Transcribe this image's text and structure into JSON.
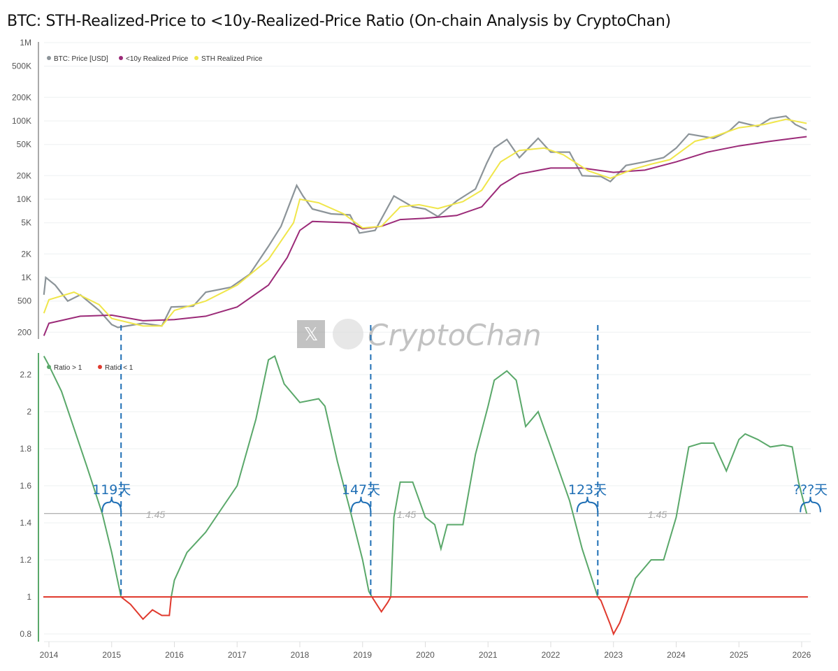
{
  "title": "BTC: STH-Realized-Price to <10y-Realized-Price Ratio (On-chain Analysis by CryptoChan)",
  "watermark": {
    "text": "CryptoChan",
    "icon": "x-logo-icon"
  },
  "chart_data": [
    {
      "type": "line",
      "yscale": "log",
      "ylim": [
        100,
        1000000
      ],
      "yticks": [
        {
          "v": 1000000,
          "label": "1M"
        },
        {
          "v": 500000,
          "label": "500K"
        },
        {
          "v": 200000,
          "label": "200K"
        },
        {
          "v": 100000,
          "label": "100K"
        },
        {
          "v": 50000,
          "label": "50K"
        },
        {
          "v": 20000,
          "label": "20K"
        },
        {
          "v": 10000,
          "label": "10K"
        },
        {
          "v": 5000,
          "label": "5K"
        },
        {
          "v": 2000,
          "label": "2K"
        },
        {
          "v": 1000,
          "label": "1K"
        },
        {
          "v": 500,
          "label": "500"
        },
        {
          "v": 200,
          "label": "200"
        }
      ],
      "grid": true,
      "legend": "top-left",
      "series": [
        {
          "name": "BTC: Price [USD]",
          "color": "#8c9499",
          "points": [
            [
              2013.92,
              600
            ],
            [
              2013.95,
              1000
            ],
            [
              2014.1,
              800
            ],
            [
              2014.3,
              500
            ],
            [
              2014.5,
              600
            ],
            [
              2014.8,
              380
            ],
            [
              2015.0,
              250
            ],
            [
              2015.1,
              230
            ],
            [
              2015.5,
              260
            ],
            [
              2015.8,
              240
            ],
            [
              2015.95,
              420
            ],
            [
              2016.3,
              430
            ],
            [
              2016.5,
              650
            ],
            [
              2016.9,
              750
            ],
            [
              2017.2,
              1100
            ],
            [
              2017.5,
              2500
            ],
            [
              2017.7,
              4500
            ],
            [
              2017.95,
              15000
            ],
            [
              2018.05,
              11000
            ],
            [
              2018.2,
              7500
            ],
            [
              2018.5,
              6500
            ],
            [
              2018.8,
              6300
            ],
            [
              2018.95,
              3700
            ],
            [
              2019.2,
              4000
            ],
            [
              2019.5,
              11000
            ],
            [
              2019.8,
              8000
            ],
            [
              2020.0,
              7500
            ],
            [
              2020.2,
              6000
            ],
            [
              2020.5,
              9500
            ],
            [
              2020.8,
              13500
            ],
            [
              2020.98,
              29000
            ],
            [
              2021.1,
              45000
            ],
            [
              2021.3,
              58000
            ],
            [
              2021.5,
              34000
            ],
            [
              2021.8,
              60000
            ],
            [
              2022.0,
              40000
            ],
            [
              2022.3,
              40000
            ],
            [
              2022.5,
              20000
            ],
            [
              2022.8,
              19500
            ],
            [
              2022.95,
              16800
            ],
            [
              2023.2,
              27000
            ],
            [
              2023.5,
              30000
            ],
            [
              2023.8,
              34000
            ],
            [
              2024.0,
              45000
            ],
            [
              2024.2,
              68000
            ],
            [
              2024.6,
              60000
            ],
            [
              2024.85,
              75000
            ],
            [
              2025.0,
              97000
            ],
            [
              2025.3,
              85000
            ],
            [
              2025.5,
              107000
            ],
            [
              2025.75,
              115000
            ],
            [
              2025.9,
              90000
            ],
            [
              2026.08,
              77000
            ]
          ]
        },
        {
          "name": "<10y Realized Price",
          "color": "#9b2a78",
          "points": [
            [
              2013.92,
              180
            ],
            [
              2014.0,
              260
            ],
            [
              2014.5,
              320
            ],
            [
              2015.0,
              330
            ],
            [
              2015.5,
              280
            ],
            [
              2016.0,
              290
            ],
            [
              2016.5,
              320
            ],
            [
              2017.0,
              420
            ],
            [
              2017.5,
              800
            ],
            [
              2017.8,
              1800
            ],
            [
              2018.0,
              4000
            ],
            [
              2018.2,
              5200
            ],
            [
              2018.8,
              5000
            ],
            [
              2019.0,
              4200
            ],
            [
              2019.3,
              4500
            ],
            [
              2019.6,
              5500
            ],
            [
              2020.0,
              5700
            ],
            [
              2020.5,
              6200
            ],
            [
              2020.9,
              8000
            ],
            [
              2021.2,
              15000
            ],
            [
              2021.5,
              21000
            ],
            [
              2022.0,
              25000
            ],
            [
              2022.5,
              25000
            ],
            [
              2023.0,
              22000
            ],
            [
              2023.5,
              23500
            ],
            [
              2024.0,
              30000
            ],
            [
              2024.5,
              40000
            ],
            [
              2025.0,
              48000
            ],
            [
              2025.5,
              55000
            ],
            [
              2026.08,
              63000
            ]
          ]
        },
        {
          "name": "STH Realized Price",
          "color": "#f0e64a",
          "points": [
            [
              2013.92,
              350
            ],
            [
              2014.0,
              520
            ],
            [
              2014.4,
              650
            ],
            [
              2014.8,
              450
            ],
            [
              2015.0,
              300
            ],
            [
              2015.5,
              240
            ],
            [
              2015.8,
              240
            ],
            [
              2016.0,
              380
            ],
            [
              2016.5,
              500
            ],
            [
              2017.0,
              800
            ],
            [
              2017.5,
              1700
            ],
            [
              2017.9,
              5000
            ],
            [
              2018.0,
              10000
            ],
            [
              2018.3,
              9000
            ],
            [
              2018.7,
              6500
            ],
            [
              2019.0,
              4300
            ],
            [
              2019.3,
              4500
            ],
            [
              2019.6,
              8000
            ],
            [
              2019.9,
              8500
            ],
            [
              2020.2,
              7600
            ],
            [
              2020.6,
              9300
            ],
            [
              2020.9,
              13000
            ],
            [
              2021.2,
              30000
            ],
            [
              2021.5,
              42000
            ],
            [
              2021.9,
              45000
            ],
            [
              2022.2,
              37000
            ],
            [
              2022.6,
              23000
            ],
            [
              2022.95,
              18500
            ],
            [
              2023.3,
              24000
            ],
            [
              2023.6,
              28000
            ],
            [
              2023.9,
              32000
            ],
            [
              2024.3,
              55000
            ],
            [
              2024.6,
              63000
            ],
            [
              2025.0,
              82000
            ],
            [
              2025.4,
              90000
            ],
            [
              2025.75,
              105000
            ],
            [
              2026.08,
              93000
            ]
          ]
        }
      ]
    },
    {
      "type": "line",
      "ylim": [
        0.78,
        2.35
      ],
      "yticks": [
        {
          "v": 2.2,
          "label": "2.2"
        },
        {
          "v": 2,
          "label": "2"
        },
        {
          "v": 1.8,
          "label": "1.8"
        },
        {
          "v": 1.6,
          "label": "1.6"
        },
        {
          "v": 1.4,
          "label": "1.4"
        },
        {
          "v": 1.2,
          "label": "1.2"
        },
        {
          "v": 1,
          "label": "1"
        },
        {
          "v": 0.8,
          "label": "0.8"
        }
      ],
      "xticks": [
        "2014",
        "2015",
        "2016",
        "2017",
        "2018",
        "2019",
        "2020",
        "2021",
        "2022",
        "2023",
        "2024",
        "2025",
        "2026"
      ],
      "grid": true,
      "legend": "top-left",
      "series": [
        {
          "name": "Ratio > 1",
          "color": "#5aa86a"
        },
        {
          "name": "Ratio < 1",
          "color": "#e03a2e"
        }
      ],
      "ratio": [
        [
          2013.92,
          2.3
        ],
        [
          2014.0,
          2.25
        ],
        [
          2014.2,
          2.11
        ],
        [
          2014.35,
          1.96
        ],
        [
          2014.6,
          1.71
        ],
        [
          2014.85,
          1.45
        ],
        [
          2015.0,
          1.24
        ],
        [
          2015.15,
          1.0
        ],
        [
          2015.3,
          0.96
        ],
        [
          2015.5,
          0.88
        ],
        [
          2015.65,
          0.93
        ],
        [
          2015.8,
          0.9
        ],
        [
          2015.92,
          0.9
        ],
        [
          2015.95,
          1.0
        ],
        [
          2016.0,
          1.09
        ],
        [
          2016.2,
          1.24
        ],
        [
          2016.5,
          1.35
        ],
        [
          2016.8,
          1.5
        ],
        [
          2017.0,
          1.6
        ],
        [
          2017.3,
          1.96
        ],
        [
          2017.5,
          2.28
        ],
        [
          2017.6,
          2.3
        ],
        [
          2017.75,
          2.15
        ],
        [
          2018.0,
          2.05
        ],
        [
          2018.3,
          2.07
        ],
        [
          2018.4,
          2.03
        ],
        [
          2018.6,
          1.73
        ],
        [
          2018.8,
          1.47
        ],
        [
          2019.0,
          1.2
        ],
        [
          2019.1,
          1.03
        ],
        [
          2019.15,
          1.0
        ],
        [
          2019.3,
          0.92
        ],
        [
          2019.4,
          0.97
        ],
        [
          2019.45,
          1.0
        ],
        [
          2019.5,
          1.43
        ],
        [
          2019.6,
          1.62
        ],
        [
          2019.8,
          1.62
        ],
        [
          2020.0,
          1.43
        ],
        [
          2020.15,
          1.39
        ],
        [
          2020.25,
          1.26
        ],
        [
          2020.35,
          1.39
        ],
        [
          2020.6,
          1.39
        ],
        [
          2020.8,
          1.77
        ],
        [
          2021.0,
          2.03
        ],
        [
          2021.1,
          2.17
        ],
        [
          2021.3,
          2.22
        ],
        [
          2021.45,
          2.17
        ],
        [
          2021.6,
          1.92
        ],
        [
          2021.8,
          2.0
        ],
        [
          2022.0,
          1.81
        ],
        [
          2022.3,
          1.52
        ],
        [
          2022.5,
          1.26
        ],
        [
          2022.75,
          1.0
        ],
        [
          2022.8,
          0.98
        ],
        [
          2022.95,
          0.85
        ],
        [
          2023.0,
          0.8
        ],
        [
          2023.1,
          0.86
        ],
        [
          2023.25,
          1.0
        ],
        [
          2023.35,
          1.1
        ],
        [
          2023.6,
          1.2
        ],
        [
          2023.8,
          1.2
        ],
        [
          2024.0,
          1.43
        ],
        [
          2024.2,
          1.81
        ],
        [
          2024.4,
          1.83
        ],
        [
          2024.6,
          1.83
        ],
        [
          2024.8,
          1.68
        ],
        [
          2025.0,
          1.85
        ],
        [
          2025.1,
          1.88
        ],
        [
          2025.3,
          1.85
        ],
        [
          2025.5,
          1.81
        ],
        [
          2025.7,
          1.82
        ],
        [
          2025.85,
          1.81
        ],
        [
          2025.95,
          1.62
        ],
        [
          2026.08,
          1.45
        ]
      ],
      "level": {
        "value": 1.45,
        "label": "1.45",
        "labels_at": [
          2015.7,
          2019.7,
          2023.7
        ]
      },
      "annotations": [
        {
          "from": 2014.85,
          "to": 2015.15,
          "label": "119天"
        },
        {
          "from": 2018.82,
          "to": 2019.13,
          "label": "147天"
        },
        {
          "from": 2022.42,
          "to": 2022.75,
          "label": "123天"
        },
        {
          "from": 2025.98,
          "to": 2026.3,
          "label": "???天"
        }
      ]
    }
  ]
}
